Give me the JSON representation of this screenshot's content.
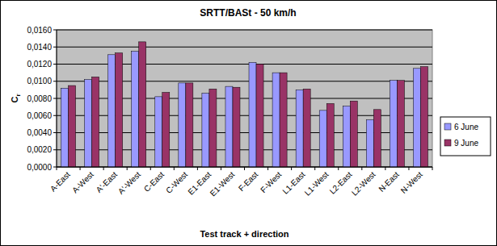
{
  "chart_data": {
    "type": "bar",
    "title": "SRTT/BASt - 50 km/h",
    "x_label": "Test track + direction",
    "y_label": "Cr",
    "categories": [
      "A-East",
      "A-West",
      "A'-East",
      "A'-West",
      "C-East",
      "C-West",
      "E1-East",
      "E1-West",
      "F-East",
      "F-West",
      "L1-East",
      "L1-West",
      "L2-East",
      "L2-West",
      "N-East",
      "N-West"
    ],
    "series": [
      {
        "name": "6 June",
        "color": "#9999ff",
        "values": [
          0.0092,
          0.0102,
          0.0131,
          0.0135,
          0.0082,
          0.0098,
          0.0086,
          0.0094,
          0.0122,
          0.011,
          0.009,
          0.0066,
          0.0071,
          0.0055,
          0.0101,
          0.0115
        ]
      },
      {
        "name": "9 June",
        "color": "#993366",
        "values": [
          0.0095,
          0.0105,
          0.0133,
          0.0146,
          0.0087,
          0.0098,
          0.0091,
          0.0093,
          0.012,
          0.011,
          0.0091,
          0.0074,
          0.0077,
          0.0067,
          0.0101,
          0.0117
        ]
      }
    ],
    "ylim": [
      0,
      0.016
    ],
    "yticks": [
      {
        "value": 0,
        "label": "0,0000"
      },
      {
        "value": 0.002,
        "label": "0,0020"
      },
      {
        "value": 0.004,
        "label": "0,0040"
      },
      {
        "value": 0.006,
        "label": "0,0060"
      },
      {
        "value": 0.008,
        "label": "0,0080"
      },
      {
        "value": 0.01,
        "label": "0,0100"
      },
      {
        "value": 0.012,
        "label": "0,0120"
      },
      {
        "value": 0.014,
        "label": "0,0140"
      },
      {
        "value": 0.016,
        "label": "0,0160"
      }
    ],
    "grid": true,
    "legend": "right"
  }
}
